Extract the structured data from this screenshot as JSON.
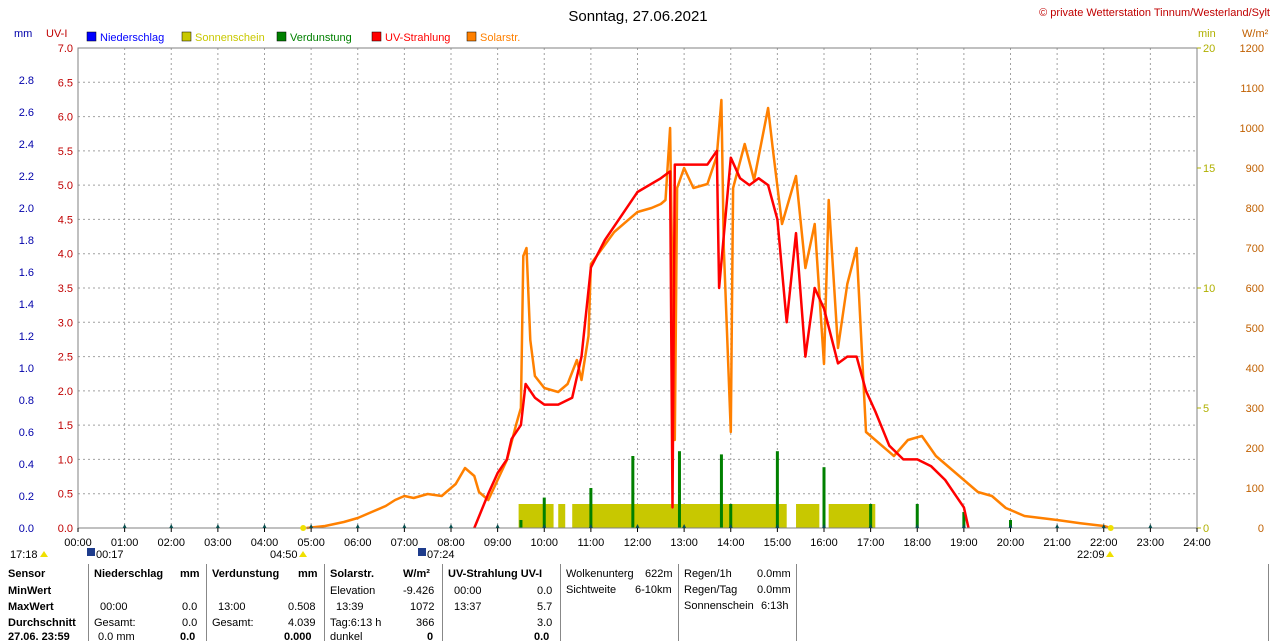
{
  "title": "Sonntag, 27.06.2021",
  "copyright": "© private Wetterstation Tinnum/Westerland/Sylt",
  "legend": [
    {
      "label": "Niederschlag",
      "color": "#0000ff"
    },
    {
      "label": "Sonnenschein",
      "color": "#c8c800"
    },
    {
      "label": "Verdunstung",
      "color": "#008000"
    },
    {
      "label": "UV-Strahlung",
      "color": "#ff0000"
    },
    {
      "label": "Solarstr.",
      "color": "#ff8000"
    }
  ],
  "colors": {
    "uv": "#ff0000",
    "solar": "#ff8000",
    "sun": "#c8c800",
    "evap": "#008000",
    "rain": "#0000ff",
    "grid": "#a0a0a0"
  },
  "axis_units": {
    "mm": "mm",
    "uv": "UV-I",
    "min": "min",
    "wm2": "W/m²"
  },
  "axis_ticks": {
    "mm": [
      "0.0",
      "0.2",
      "0.4",
      "0.6",
      "0.8",
      "1.0",
      "1.2",
      "1.4",
      "1.6",
      "1.8",
      "2.0",
      "2.2",
      "2.4",
      "2.6",
      "2.8"
    ],
    "uv": [
      "0.0",
      "0.5",
      "1.0",
      "1.5",
      "2.0",
      "2.5",
      "3.0",
      "3.5",
      "4.0",
      "4.5",
      "5.0",
      "5.5",
      "6.0",
      "6.5",
      "7.0"
    ],
    "min": [
      "0",
      "5",
      "10",
      "15",
      "20"
    ],
    "wm2": [
      "0",
      "100",
      "200",
      "300",
      "400",
      "500",
      "600",
      "700",
      "800",
      "900",
      "1000",
      "1100",
      "1200"
    ],
    "time": [
      "00:00",
      "01:00",
      "02:00",
      "03:00",
      "04:00",
      "05:00",
      "06:00",
      "07:00",
      "08:00",
      "09:00",
      "10:00",
      "11:00",
      "12:00",
      "13:00",
      "14:00",
      "15:00",
      "16:00",
      "17:00",
      "18:00",
      "19:00",
      "20:00",
      "21:00",
      "22:00",
      "23:00",
      "24:00"
    ]
  },
  "sun_markers": {
    "left": "17:18",
    "moonset": "00:17",
    "sunrise": "04:50",
    "moonrise": "07:24",
    "sunset": "22:09"
  },
  "chart_data": {
    "type": "line",
    "x_unit": "hour of day",
    "xlim": [
      0,
      24
    ],
    "series": [
      {
        "name": "Solarstr.",
        "unit": "W/m²",
        "ylim": [
          0,
          1200
        ],
        "points": [
          [
            4.9,
            0
          ],
          [
            5.3,
            5
          ],
          [
            5.7,
            15
          ],
          [
            6.0,
            25
          ],
          [
            6.3,
            40
          ],
          [
            6.6,
            55
          ],
          [
            6.8,
            70
          ],
          [
            7.0,
            80
          ],
          [
            7.2,
            75
          ],
          [
            7.5,
            85
          ],
          [
            7.8,
            80
          ],
          [
            7.9,
            90
          ],
          [
            8.1,
            110
          ],
          [
            8.3,
            150
          ],
          [
            8.5,
            130
          ],
          [
            8.6,
            90
          ],
          [
            8.8,
            70
          ],
          [
            9.0,
            120
          ],
          [
            9.2,
            170
          ],
          [
            9.4,
            260
          ],
          [
            9.5,
            300
          ],
          [
            9.55,
            680
          ],
          [
            9.62,
            700
          ],
          [
            9.7,
            470
          ],
          [
            9.8,
            380
          ],
          [
            10.0,
            350
          ],
          [
            10.3,
            340
          ],
          [
            10.5,
            360
          ],
          [
            10.7,
            420
          ],
          [
            10.8,
            370
          ],
          [
            10.95,
            480
          ],
          [
            11.0,
            660
          ],
          [
            11.5,
            740
          ],
          [
            12.0,
            790
          ],
          [
            12.3,
            800
          ],
          [
            12.5,
            810
          ],
          [
            12.6,
            820
          ],
          [
            12.7,
            1000
          ],
          [
            12.8,
            220
          ],
          [
            12.85,
            850
          ],
          [
            13.0,
            900
          ],
          [
            13.2,
            850
          ],
          [
            13.5,
            860
          ],
          [
            13.7,
            930
          ],
          [
            13.8,
            1070
          ],
          [
            13.85,
            700
          ],
          [
            14.0,
            240
          ],
          [
            14.05,
            850
          ],
          [
            14.3,
            960
          ],
          [
            14.5,
            870
          ],
          [
            14.8,
            1050
          ],
          [
            14.9,
            950
          ],
          [
            15.1,
            760
          ],
          [
            15.4,
            880
          ],
          [
            15.6,
            650
          ],
          [
            15.8,
            760
          ],
          [
            16.0,
            410
          ],
          [
            16.1,
            820
          ],
          [
            16.3,
            450
          ],
          [
            16.5,
            610
          ],
          [
            16.7,
            700
          ],
          [
            16.9,
            240
          ],
          [
            17.1,
            220
          ],
          [
            17.5,
            180
          ],
          [
            17.8,
            220
          ],
          [
            18.1,
            230
          ],
          [
            18.4,
            180
          ],
          [
            18.7,
            150
          ],
          [
            19.0,
            120
          ],
          [
            19.3,
            90
          ],
          [
            19.6,
            80
          ],
          [
            19.9,
            50
          ],
          [
            20.3,
            30
          ],
          [
            21.0,
            20
          ],
          [
            21.5,
            12
          ],
          [
            22.0,
            5
          ],
          [
            22.15,
            0
          ]
        ]
      },
      {
        "name": "UV-Strahlung",
        "unit": "UV-I",
        "ylim": [
          0,
          7
        ],
        "points": [
          [
            8.5,
            0
          ],
          [
            8.8,
            0.5
          ],
          [
            9.0,
            0.8
          ],
          [
            9.2,
            1.0
          ],
          [
            9.3,
            1.3
          ],
          [
            9.5,
            1.5
          ],
          [
            9.6,
            2.1
          ],
          [
            9.8,
            1.9
          ],
          [
            10.0,
            1.8
          ],
          [
            10.3,
            1.8
          ],
          [
            10.6,
            1.9
          ],
          [
            10.8,
            2.5
          ],
          [
            11.0,
            3.8
          ],
          [
            11.3,
            4.2
          ],
          [
            11.6,
            4.5
          ],
          [
            12.0,
            4.9
          ],
          [
            12.5,
            5.1
          ],
          [
            12.7,
            5.2
          ],
          [
            12.75,
            0.3
          ],
          [
            12.8,
            5.3
          ],
          [
            13.0,
            5.3
          ],
          [
            13.5,
            5.3
          ],
          [
            13.7,
            5.5
          ],
          [
            13.75,
            3.5
          ],
          [
            14.0,
            5.4
          ],
          [
            14.2,
            5.1
          ],
          [
            14.4,
            5.0
          ],
          [
            14.6,
            5.1
          ],
          [
            14.8,
            5.0
          ],
          [
            15.0,
            4.5
          ],
          [
            15.2,
            3.0
          ],
          [
            15.4,
            4.3
          ],
          [
            15.6,
            2.5
          ],
          [
            15.8,
            3.5
          ],
          [
            16.0,
            3.2
          ],
          [
            16.3,
            2.4
          ],
          [
            16.5,
            2.5
          ],
          [
            16.7,
            2.5
          ],
          [
            16.9,
            2.0
          ],
          [
            17.1,
            1.7
          ],
          [
            17.4,
            1.2
          ],
          [
            17.7,
            1.0
          ],
          [
            18.0,
            1.0
          ],
          [
            18.3,
            0.9
          ],
          [
            18.6,
            0.7
          ],
          [
            18.8,
            0.5
          ],
          [
            19.0,
            0.3
          ],
          [
            19.1,
            0
          ]
        ]
      },
      {
        "name": "Sonnenschein",
        "unit": "min",
        "ylim": [
          0,
          20
        ],
        "segments": [
          [
            9.45,
            10.2
          ],
          [
            10.3,
            10.45
          ],
          [
            10.6,
            12.0
          ],
          [
            12.0,
            15.2
          ],
          [
            15.4,
            15.9
          ],
          [
            16.1,
            17.1
          ]
        ],
        "level": 1
      }
    ],
    "evaporation_spikes_hours": [
      9.5,
      10.0,
      11.0,
      11.9,
      12.9,
      13.8,
      14.0,
      15.0,
      16.0,
      17.0,
      18.0,
      19.0,
      20.0
    ],
    "evaporation_spike_heights_mm": [
      0.05,
      0.19,
      0.25,
      0.45,
      0.48,
      0.46,
      0.15,
      0.48,
      0.38,
      0.15,
      0.15,
      0.1,
      0.05
    ]
  },
  "table": {
    "labels": [
      "Sensor",
      "MinWert",
      "MaxWert",
      "Durchschnitt",
      "27.06. 23:59"
    ],
    "niederschlag": {
      "header": "Niederschlag",
      "unit": "mm",
      "max_time": "00:00",
      "max": "0.0",
      "gesamt_label": "Gesamt:",
      "gesamt": "0.0",
      "last": "0.0 mm",
      "last_val": "0.0"
    },
    "verdunstung": {
      "header": "Verdunstung",
      "unit": "mm",
      "max_time": "13:00",
      "max": "0.508",
      "gesamt_label": "Gesamt:",
      "gesamt": "4.039",
      "last_val": "0.000"
    },
    "solar": {
      "header": "Solarstr.",
      "unit": "W/m²",
      "min_label": "Elevation",
      "min": "-9.426",
      "max_time": "13:39",
      "max": "1072",
      "avg_label": "Tag:6:13 h",
      "avg": "366",
      "last_label": "dunkel",
      "last_val": "0"
    },
    "uv": {
      "header": "UV-Strahlung UV-I",
      "min_time": "00:00",
      "min": "0.0",
      "max_time": "13:37",
      "max": "5.7",
      "avg": "3.0",
      "last_val": "0.0"
    },
    "cloud": {
      "l1": "Wolkenunterg",
      "v1": "622m",
      "l2": "Sichtweite",
      "v2": "6-10km"
    },
    "rain": {
      "l1": "Regen/1h",
      "v1": "0.0mm",
      "l2": "Regen/Tag",
      "v2": "0.0mm",
      "l3": "Sonnenschein",
      "v3": "6:13h"
    }
  }
}
